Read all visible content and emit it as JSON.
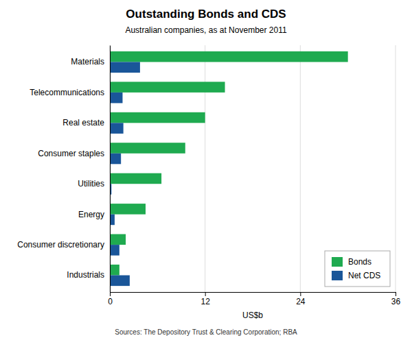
{
  "chart_data": {
    "type": "bar",
    "orientation": "horizontal",
    "title": "Outstanding Bonds and CDS",
    "subtitle": "Australian companies, as at November 2011",
    "source": "Sources: The Depository Trust & Clearing Corporation; RBA",
    "xlabel": "US$b",
    "categories": [
      "Industrials",
      "Consumer discretionary",
      "Energy",
      "Utilities",
      "Consumer staples",
      "Real estate",
      "Telecommunications",
      "Materials"
    ],
    "series": [
      {
        "name": "Bonds",
        "color": "#1faa50",
        "values": [
          1.2,
          2.0,
          4.5,
          6.5,
          9.5,
          12.0,
          14.5,
          30.0
        ]
      },
      {
        "name": "Net CDS",
        "color": "#1a5699",
        "values": [
          2.5,
          1.2,
          0.6,
          0.2,
          1.4,
          1.7,
          1.6,
          3.8
        ]
      }
    ],
    "xlim": [
      0,
      36
    ],
    "xticks": [
      0,
      12,
      24,
      36
    ],
    "grid": true,
    "legend": "lower right"
  }
}
